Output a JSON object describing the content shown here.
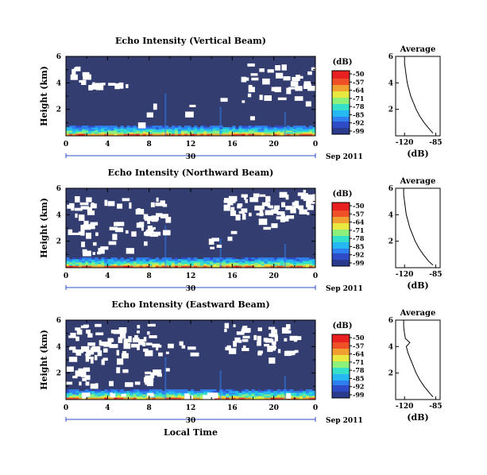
{
  "figure": {
    "time_axis_label": "Local Time",
    "date_label": "Sep 2011",
    "colorbar_unit": "(dB)",
    "colorbar_ticks": [
      "-50",
      "-57",
      "-64",
      "-71",
      "-78",
      "-85",
      "-92",
      "-99"
    ],
    "colormap": [
      "#2a3a8c",
      "#2f4cc8",
      "#2f7ff0",
      "#25b8f2",
      "#35e0c8",
      "#8cf07a",
      "#e8e840",
      "#f0a030",
      "#f05028",
      "#e82020"
    ],
    "background_color": "#333d70",
    "gap_color": "#ffffff"
  },
  "chart_data": [
    {
      "type": "heatmap",
      "title": "Echo Intensity (Vertical Beam)",
      "ylabel": "Height (km)",
      "xlabel": "",
      "x_ticks": [
        "0",
        "4",
        "8",
        "12",
        "16",
        "20",
        "0"
      ],
      "x_range_hours": [
        0,
        24
      ],
      "date_tick": "30",
      "y_ticks": [
        "2",
        "4",
        "6"
      ],
      "y_range_km": [
        0,
        6
      ],
      "clim_db": [
        -99,
        -50
      ],
      "average_profile": {
        "title": "Average",
        "xlabel": "(dB)",
        "x_ticks": [
          "-120",
          "-85"
        ],
        "y_ticks": [
          "2",
          "4",
          "6"
        ],
        "heights_km": [
          0.2,
          0.5,
          1.0,
          1.5,
          2.0,
          2.5,
          3.0,
          3.5,
          4.0,
          4.5,
          5.0,
          5.5,
          6.0
        ],
        "values_db": [
          -88,
          -92,
          -98,
          -103,
          -107,
          -110,
          -113,
          -115,
          -117,
          -118,
          -119,
          -120,
          -120
        ]
      }
    },
    {
      "type": "heatmap",
      "title": "Echo Intensity (Northward Beam)",
      "ylabel": "Height (km)",
      "xlabel": "",
      "x_ticks": [
        "0",
        "4",
        "8",
        "12",
        "16",
        "20",
        "0"
      ],
      "x_range_hours": [
        0,
        24
      ],
      "date_tick": "30",
      "y_ticks": [
        "2",
        "4",
        "6"
      ],
      "y_range_km": [
        0,
        6
      ],
      "clim_db": [
        -99,
        -50
      ],
      "average_profile": {
        "title": "Average",
        "xlabel": "(dB)",
        "x_ticks": [
          "-120",
          "-85"
        ],
        "y_ticks": [
          "2",
          "4",
          "6"
        ],
        "heights_km": [
          0.2,
          0.5,
          1.0,
          1.5,
          2.0,
          2.5,
          3.0,
          3.5,
          4.0,
          4.5,
          5.0,
          5.5,
          6.0
        ],
        "values_db": [
          -88,
          -93,
          -99,
          -104,
          -108,
          -111,
          -114,
          -116,
          -118,
          -119,
          -120,
          -121,
          -121
        ]
      }
    },
    {
      "type": "heatmap",
      "title": "Echo Intensity (Eastward Beam)",
      "ylabel": "Height (km)",
      "xlabel": "Local Time",
      "x_ticks": [
        "0",
        "4",
        "8",
        "12",
        "16",
        "20",
        "0"
      ],
      "x_range_hours": [
        0,
        24
      ],
      "date_tick": "30",
      "y_ticks": [
        "2",
        "4",
        "6"
      ],
      "y_range_km": [
        0,
        6
      ],
      "clim_db": [
        -99,
        -50
      ],
      "average_profile": {
        "title": "Average",
        "xlabel": "(dB)",
        "x_ticks": [
          "-120",
          "-85"
        ],
        "y_ticks": [
          "2",
          "4",
          "6"
        ],
        "heights_km": [
          0.2,
          0.5,
          1.0,
          1.5,
          2.0,
          2.5,
          3.0,
          3.5,
          4.0,
          4.3,
          4.6,
          5.0,
          5.5,
          6.0
        ],
        "values_db": [
          -88,
          -92,
          -98,
          -103,
          -107,
          -110,
          -113,
          -116,
          -118,
          -114,
          -119,
          -120,
          -121,
          -121
        ]
      }
    }
  ]
}
